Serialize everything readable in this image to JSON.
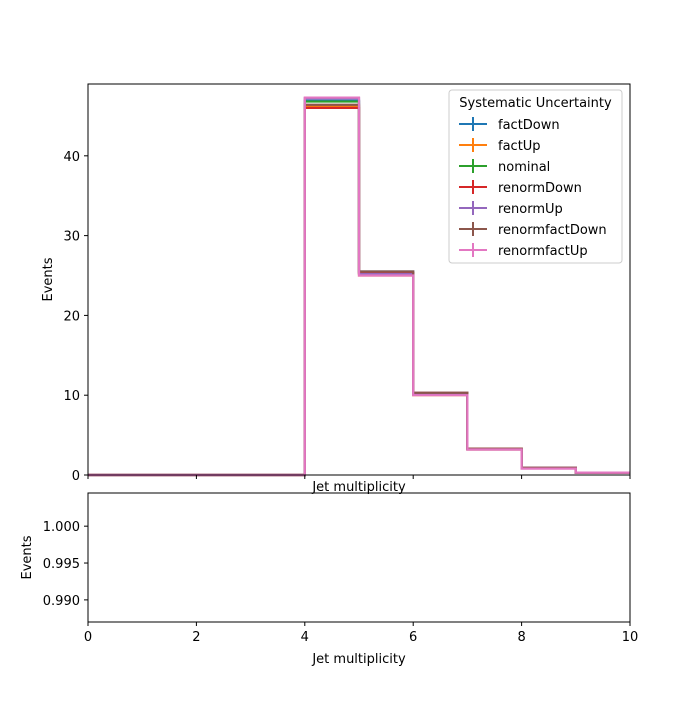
{
  "chart_data": [
    {
      "type": "step",
      "xlabel": "Jet multiplicity",
      "ylabel": "Events",
      "xlim": [
        0,
        10
      ],
      "ylim": [
        0,
        49
      ],
      "bin_edges": [
        0,
        1,
        2,
        3,
        4,
        5,
        6,
        7,
        8,
        9,
        10
      ],
      "x_ticks": [],
      "x_tick_labels_shown": false,
      "y_ticks": [
        0,
        10,
        20,
        30,
        40
      ],
      "legend": {
        "title": "Systematic Uncertainty",
        "placement": "top-right"
      },
      "series": [
        {
          "name": "factDown",
          "color": "#1f77b4",
          "values": [
            0,
            0,
            0,
            0,
            46.9,
            25.5,
            10.3,
            3.3,
            0.9,
            0.3
          ]
        },
        {
          "name": "factUp",
          "color": "#ff7f0e",
          "values": [
            0,
            0,
            0,
            0,
            46.2,
            25.0,
            10.0,
            3.2,
            0.9,
            0.3
          ]
        },
        {
          "name": "nominal",
          "color": "#2ca02c",
          "values": [
            0,
            0,
            0,
            0,
            46.8,
            25.3,
            10.2,
            3.3,
            0.9,
            0.3
          ]
        },
        {
          "name": "renormDown",
          "color": "#d62728",
          "values": [
            0,
            0,
            0,
            0,
            46.0,
            25.3,
            10.3,
            3.3,
            0.9,
            0.3
          ]
        },
        {
          "name": "renormUp",
          "color": "#9467bd",
          "values": [
            0,
            0,
            0,
            0,
            47.2,
            25.2,
            10.1,
            3.2,
            0.9,
            0.3
          ]
        },
        {
          "name": "renormfactDown",
          "color": "#8c564b",
          "values": [
            0,
            0,
            0,
            0,
            46.4,
            25.5,
            10.3,
            3.3,
            0.9,
            0.3
          ]
        },
        {
          "name": "renormfactUp",
          "color": "#e377c2",
          "values": [
            0,
            0,
            0,
            0,
            47.3,
            25.0,
            10.0,
            3.2,
            0.8,
            0.3
          ]
        }
      ]
    },
    {
      "type": "line",
      "xlabel": "Jet multiplicity",
      "ylabel": "Events",
      "xlim": [
        0,
        10
      ],
      "ylim": [
        0.987,
        1.0045
      ],
      "x_ticks": [
        0,
        2,
        4,
        6,
        8,
        10
      ],
      "y_ticks": [
        1.0,
        0.995,
        0.99
      ],
      "y_tick_labels": [
        "1.000",
        "0.995",
        "0.990"
      ],
      "series": []
    }
  ]
}
